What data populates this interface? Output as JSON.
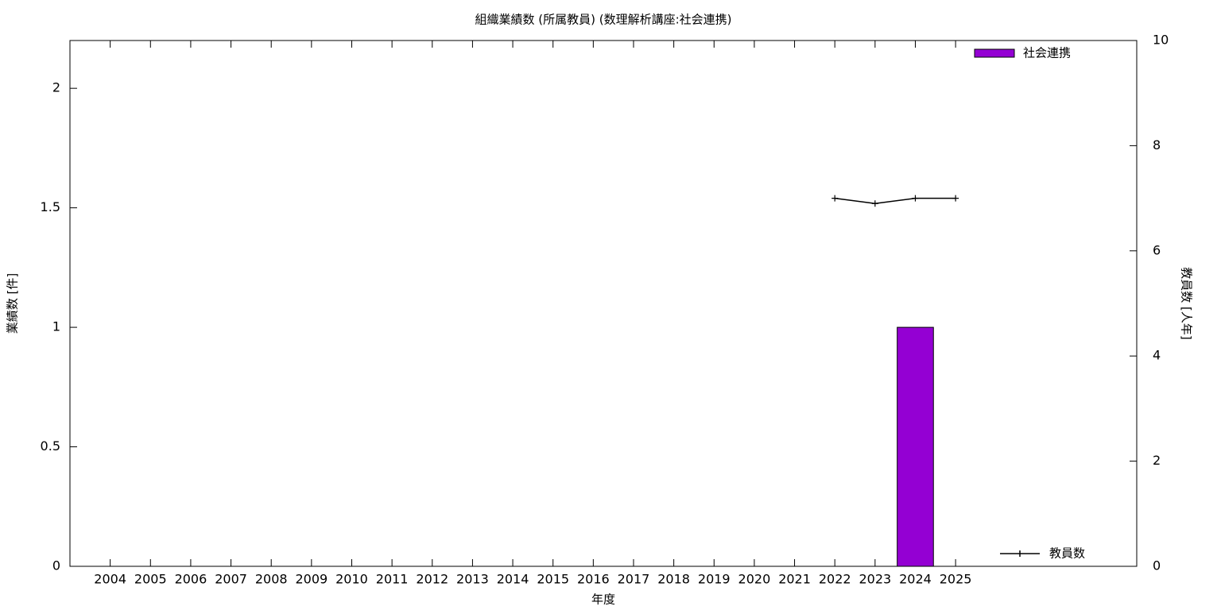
{
  "chart_data": {
    "type": "bar",
    "title": "組織業績数 (所属教員) (数理解析講座:社会連携)",
    "xlabel": "年度",
    "ylabel": "業績数 [件]",
    "y2label": "教員数 [人年]",
    "categories": [
      "2004",
      "2005",
      "2006",
      "2007",
      "2008",
      "2009",
      "2010",
      "2011",
      "2012",
      "2013",
      "2014",
      "2015",
      "2016",
      "2017",
      "2018",
      "2019",
      "2020",
      "2021",
      "2022",
      "2023",
      "2024",
      "2025"
    ],
    "series": [
      {
        "name": "社会連携",
        "type": "bar",
        "color": "#9400d3",
        "values": [
          0,
          0,
          0,
          0,
          0,
          0,
          0,
          0,
          0,
          0,
          0,
          0,
          0,
          0,
          0,
          0,
          0,
          0,
          0,
          0,
          1,
          0
        ]
      },
      {
        "name": "教員数",
        "type": "line",
        "axis": "y2",
        "color": "#000000",
        "values": [
          null,
          null,
          null,
          null,
          null,
          null,
          null,
          null,
          null,
          null,
          null,
          null,
          null,
          null,
          null,
          null,
          null,
          null,
          7,
          6.9,
          7,
          7
        ]
      }
    ],
    "ylim": [
      0,
      2.2
    ],
    "yticks": [
      0,
      0.5,
      1,
      1.5,
      2
    ],
    "y2lim": [
      0,
      10
    ],
    "y2ticks": [
      0,
      2,
      4,
      6,
      8,
      10
    ],
    "grid": false
  }
}
